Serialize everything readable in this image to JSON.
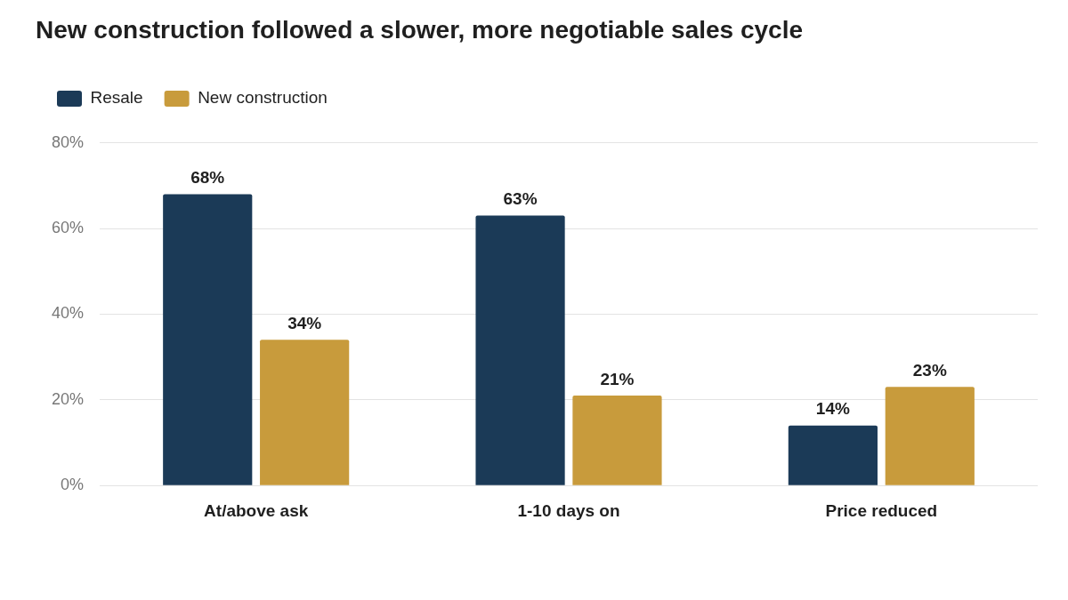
{
  "chart_data": {
    "type": "bar",
    "title": "New construction followed a slower, more negotiable sales cycle",
    "categories": [
      "At/above ask",
      "1-10 days on",
      "Price reduced"
    ],
    "series": [
      {
        "name": "Resale",
        "color": "#1b3a57",
        "values": [
          68,
          63,
          14
        ],
        "value_labels": [
          "68%",
          "63%",
          "14%"
        ]
      },
      {
        "name": "New construction",
        "color": "#c89b3c",
        "values": [
          34,
          21,
          23
        ],
        "value_labels": [
          "34%",
          "21%",
          "23%"
        ]
      }
    ],
    "ylim": [
      0,
      80
    ],
    "yticks": [
      {
        "value": 0,
        "label": "0%"
      },
      {
        "value": 20,
        "label": "20%"
      },
      {
        "value": 40,
        "label": "40%"
      },
      {
        "value": 60,
        "label": "60%"
      },
      {
        "value": 80,
        "label": "80%"
      }
    ],
    "grid": "y",
    "legend": "top left"
  }
}
